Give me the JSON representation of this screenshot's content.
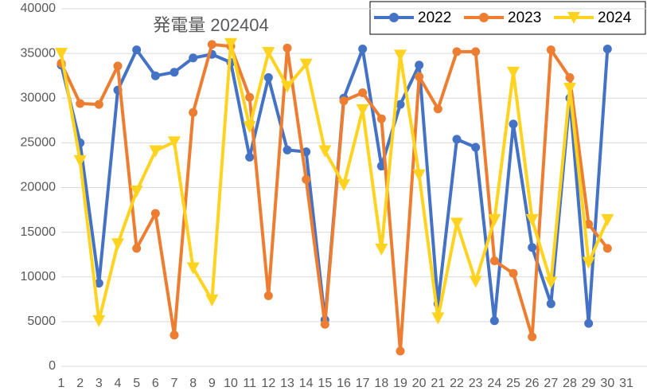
{
  "chart_data": {
    "type": "line",
    "title": "発電量 202404",
    "categories": [
      "1",
      "2",
      "3",
      "4",
      "5",
      "6",
      "7",
      "8",
      "9",
      "10",
      "11",
      "12",
      "13",
      "14",
      "15",
      "16",
      "17",
      "18",
      "19",
      "20",
      "21",
      "22",
      "23",
      "24",
      "25",
      "26",
      "27",
      "28",
      "29",
      "30",
      "31"
    ],
    "series": [
      {
        "name": "2022",
        "color": "#4472c4",
        "marker": "circle",
        "values": [
          33700,
          25000,
          9300,
          30900,
          35400,
          32500,
          32900,
          34500,
          34900,
          34000,
          23400,
          32300,
          24200,
          24000,
          5200,
          30000,
          35500,
          22400,
          29300,
          33700,
          7000,
          25400,
          24500,
          5100,
          27100,
          13300,
          7000,
          30000,
          4800,
          35500,
          null
        ]
      },
      {
        "name": "2023",
        "color": "#ed7d31",
        "marker": "circle",
        "values": [
          33900,
          29400,
          29300,
          33600,
          13200,
          17100,
          3500,
          28400,
          36000,
          35800,
          30100,
          7900,
          35600,
          20900,
          4700,
          29700,
          30600,
          27700,
          1700,
          32400,
          28800,
          35200,
          35200,
          11800,
          10400,
          3300,
          35400,
          32300,
          15900,
          13200,
          null
        ]
      },
      {
        "name": "2024",
        "color": "#ffd320",
        "marker": "triangle-down",
        "values": [
          35000,
          23000,
          5100,
          13700,
          19600,
          24100,
          25100,
          11000,
          7400,
          36100,
          26800,
          35100,
          31300,
          33800,
          24100,
          20300,
          28700,
          13100,
          34800,
          21400,
          5400,
          16000,
          9500,
          16400,
          32900,
          16400,
          9400,
          31100,
          11600,
          16400,
          null
        ]
      }
    ],
    "ylim": [
      0,
      40000
    ],
    "yticks": [
      0,
      5000,
      10000,
      15000,
      20000,
      25000,
      30000,
      35000,
      40000
    ],
    "grid": true,
    "legend": "top-right"
  }
}
